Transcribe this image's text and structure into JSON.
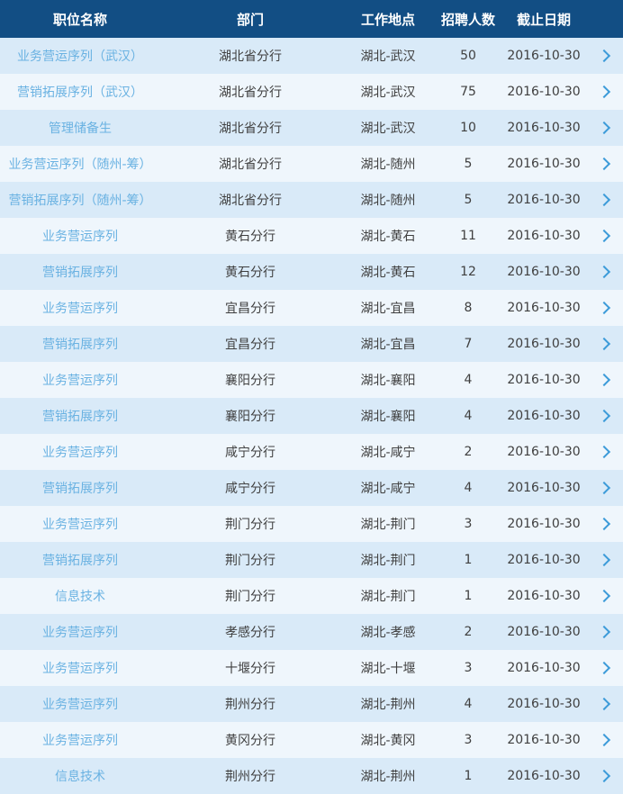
{
  "colors": {
    "header_bg": "#124e84",
    "header_text": "#ffffff",
    "row_odd_bg": "#d9eaf8",
    "row_even_bg": "#eff6fc",
    "link_text": "#6ab2e2",
    "cell_text": "#3f3f3f",
    "chevron": "#3d9bd9"
  },
  "table": {
    "columns": {
      "job": "职位名称",
      "dept": "部门",
      "location": "工作地点",
      "count": "招聘人数",
      "deadline": "截止日期"
    },
    "rows": [
      {
        "job": "业务营运序列（武汉）",
        "dept": "湖北省分行",
        "location": "湖北-武汉",
        "count": "50",
        "deadline": "2016-10-30"
      },
      {
        "job": "营销拓展序列（武汉）",
        "dept": "湖北省分行",
        "location": "湖北-武汉",
        "count": "75",
        "deadline": "2016-10-30"
      },
      {
        "job": "管理储备生",
        "dept": "湖北省分行",
        "location": "湖北-武汉",
        "count": "10",
        "deadline": "2016-10-30"
      },
      {
        "job": "业务营运序列（随州-筹）",
        "dept": "湖北省分行",
        "location": "湖北-随州",
        "count": "5",
        "deadline": "2016-10-30"
      },
      {
        "job": "营销拓展序列（随州-筹）",
        "dept": "湖北省分行",
        "location": "湖北-随州",
        "count": "5",
        "deadline": "2016-10-30"
      },
      {
        "job": "业务营运序列",
        "dept": "黄石分行",
        "location": "湖北-黄石",
        "count": "11",
        "deadline": "2016-10-30"
      },
      {
        "job": "营销拓展序列",
        "dept": "黄石分行",
        "location": "湖北-黄石",
        "count": "12",
        "deadline": "2016-10-30"
      },
      {
        "job": "业务营运序列",
        "dept": "宜昌分行",
        "location": "湖北-宜昌",
        "count": "8",
        "deadline": "2016-10-30"
      },
      {
        "job": "营销拓展序列",
        "dept": "宜昌分行",
        "location": "湖北-宜昌",
        "count": "7",
        "deadline": "2016-10-30"
      },
      {
        "job": "业务营运序列",
        "dept": "襄阳分行",
        "location": "湖北-襄阳",
        "count": "4",
        "deadline": "2016-10-30"
      },
      {
        "job": "营销拓展序列",
        "dept": "襄阳分行",
        "location": "湖北-襄阳",
        "count": "4",
        "deadline": "2016-10-30"
      },
      {
        "job": "业务营运序列",
        "dept": "咸宁分行",
        "location": "湖北-咸宁",
        "count": "2",
        "deadline": "2016-10-30"
      },
      {
        "job": "营销拓展序列",
        "dept": "咸宁分行",
        "location": "湖北-咸宁",
        "count": "4",
        "deadline": "2016-10-30"
      },
      {
        "job": "业务营运序列",
        "dept": "荆门分行",
        "location": "湖北-荆门",
        "count": "3",
        "deadline": "2016-10-30"
      },
      {
        "job": "营销拓展序列",
        "dept": "荆门分行",
        "location": "湖北-荆门",
        "count": "1",
        "deadline": "2016-10-30"
      },
      {
        "job": "信息技术",
        "dept": "荆门分行",
        "location": "湖北-荆门",
        "count": "1",
        "deadline": "2016-10-30"
      },
      {
        "job": "业务营运序列",
        "dept": "孝感分行",
        "location": "湖北-孝感",
        "count": "2",
        "deadline": "2016-10-30"
      },
      {
        "job": "业务营运序列",
        "dept": "十堰分行",
        "location": "湖北-十堰",
        "count": "3",
        "deadline": "2016-10-30"
      },
      {
        "job": "业务营运序列",
        "dept": "荆州分行",
        "location": "湖北-荆州",
        "count": "4",
        "deadline": "2016-10-30"
      },
      {
        "job": "业务营运序列",
        "dept": "黄冈分行",
        "location": "湖北-黄冈",
        "count": "3",
        "deadline": "2016-10-30"
      },
      {
        "job": "信息技术",
        "dept": "荆州分行",
        "location": "湖北-荆州",
        "count": "1",
        "deadline": "2016-10-30"
      }
    ]
  }
}
